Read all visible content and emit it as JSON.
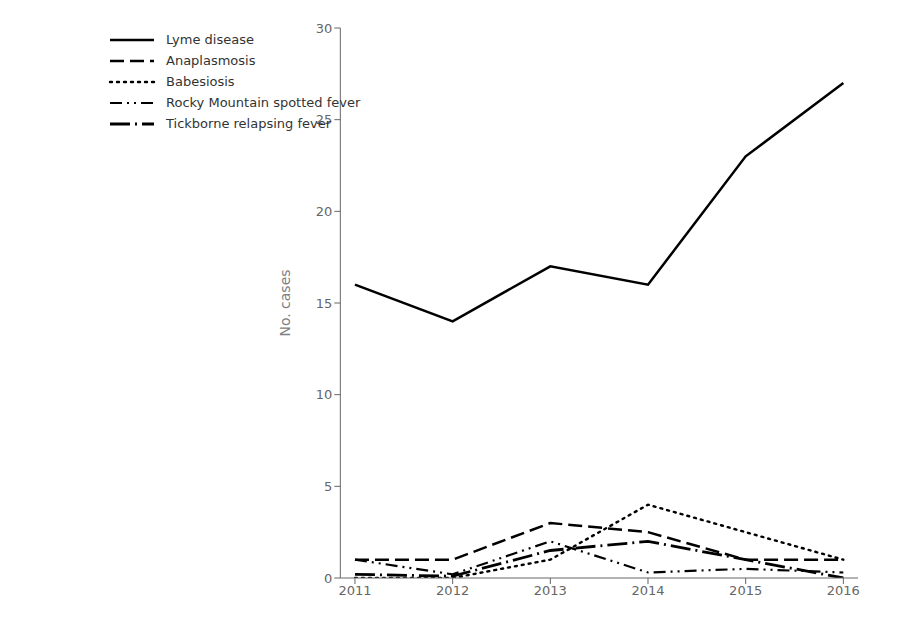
{
  "chart_data": {
    "type": "line",
    "x": [
      2011,
      2012,
      2013,
      2014,
      2015,
      2016
    ],
    "series": [
      {
        "name": "Lyme disease",
        "color": "#000000",
        "line_style": "solid",
        "values": [
          16,
          14,
          17,
          16,
          23,
          27
        ]
      },
      {
        "name": "Anaplasmosis",
        "color": "#000000",
        "line_style": "dashed",
        "values": [
          1,
          1,
          3,
          2.5,
          1,
          1
        ]
      },
      {
        "name": "Babesiosis",
        "color": "#000000",
        "line_style": "dotted",
        "values": [
          0,
          0,
          1,
          4,
          2.5,
          1
        ]
      },
      {
        "name": "Rocky Mountain spotted fever",
        "color": "#000000",
        "line_style": "dashdotdot",
        "values": [
          1,
          0.2,
          2,
          0.3,
          0.5,
          0.3
        ]
      },
      {
        "name": "Tickborne relapsing fever",
        "color": "#000000",
        "line_style": "longdashdot",
        "values": [
          0.2,
          0.1,
          1.5,
          2,
          1,
          0
        ]
      }
    ],
    "y_label": "No. cases",
    "xlim": [
      2010.85,
      2016.15
    ],
    "xticks": [
      2011,
      2012,
      2013,
      2014,
      2015,
      2016
    ],
    "ylim": [
      0,
      30
    ],
    "yticks": [
      0,
      5,
      10,
      15,
      20,
      25,
      30
    ],
    "grid": false,
    "legend": "upper left"
  }
}
